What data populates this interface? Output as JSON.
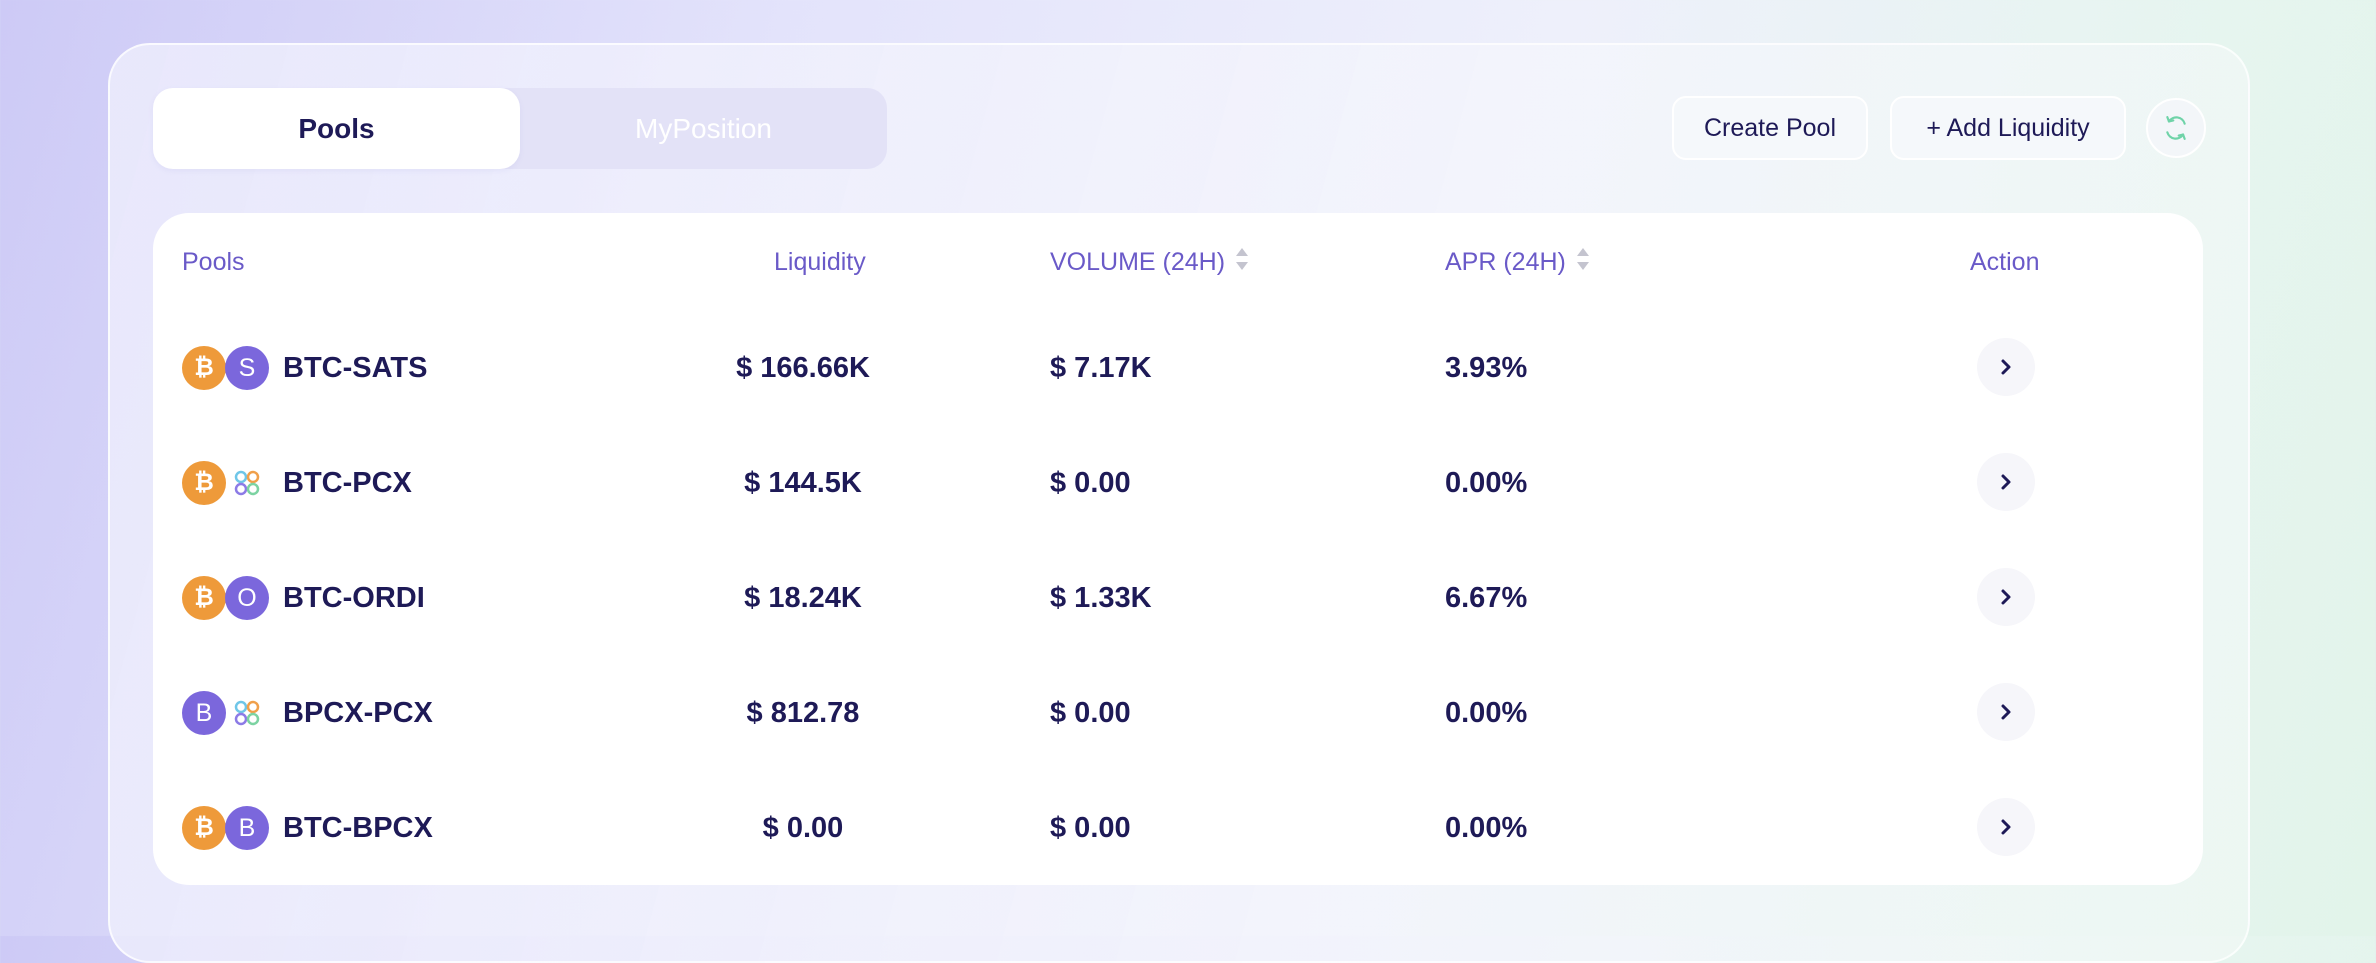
{
  "tabs": [
    {
      "label": "Pools",
      "active": true
    },
    {
      "label": "MyPosition",
      "active": false
    }
  ],
  "toolbar": {
    "create_pool": "Create Pool",
    "add_liquidity": "+ Add Liquidity",
    "refresh_icon": "refresh-icon"
  },
  "table": {
    "headers": {
      "pools": "Pools",
      "liquidity": "Liquidity",
      "volume": "VOLUME (24H)",
      "apr": "APR (24H)",
      "action": "Action"
    },
    "rows": [
      {
        "pair": "BTC-SATS",
        "token_a": "₿",
        "token_b": "S",
        "liquidity": "$ 166.66K",
        "volume": "$ 7.17K",
        "apr": "3.93%"
      },
      {
        "pair": "BTC-PCX",
        "token_a": "₿",
        "token_b": "pcx-logo",
        "liquidity": "$ 144.5K",
        "volume": "$ 0.00",
        "apr": "0.00%"
      },
      {
        "pair": "BTC-ORDI",
        "token_a": "₿",
        "token_b": "O",
        "liquidity": "$ 18.24K",
        "volume": "$ 1.33K",
        "apr": "6.67%"
      },
      {
        "pair": "BPCX-PCX",
        "token_a": "B",
        "token_b": "pcx-logo",
        "liquidity": "$ 812.78",
        "volume": "$ 0.00",
        "apr": "0.00%"
      },
      {
        "pair": "BTC-BPCX",
        "token_a": "₿",
        "token_b": "B",
        "liquidity": "$ 0.00",
        "volume": "$ 0.00",
        "apr": "0.00%"
      }
    ]
  },
  "colors": {
    "text_primary": "#1e1a57",
    "header_text": "#6a5ac8",
    "btc_orange": "#ee9a3a",
    "token_purple": "#7b67dc",
    "refresh_green": "#6fd3a8"
  }
}
